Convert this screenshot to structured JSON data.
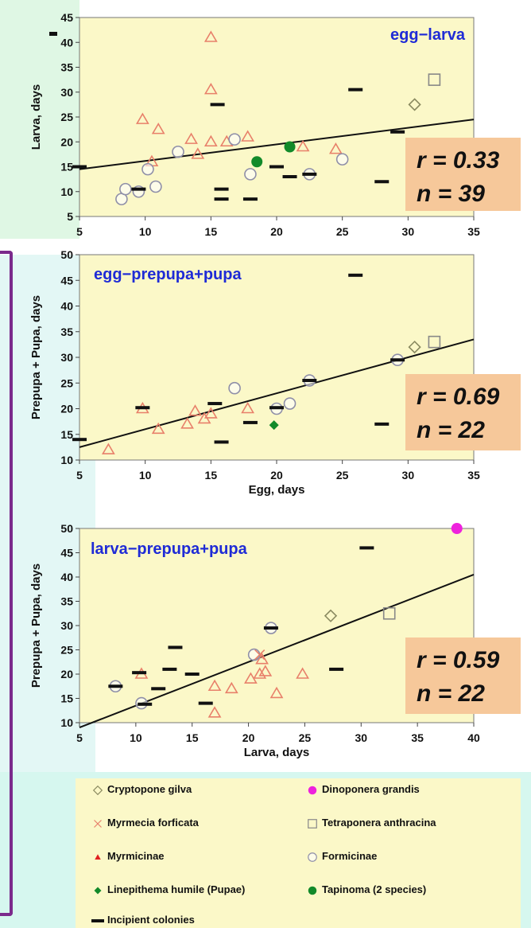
{
  "chart_data": [
    {
      "type": "scatter",
      "title": "egg−larva",
      "xlabel": "",
      "ylabel": "Larva, days",
      "xlim": [
        5,
        35
      ],
      "ylim": [
        5,
        45
      ],
      "xticks": [
        5,
        10,
        15,
        20,
        25,
        30,
        35
      ],
      "yticks": [
        5,
        10,
        15,
        20,
        25,
        30,
        35,
        40,
        45
      ],
      "stat_r": "r = 0.33",
      "stat_n": "n = 39",
      "trendline": [
        [
          5,
          14.5
        ],
        [
          35,
          24.5
        ]
      ],
      "series": [
        {
          "name": "Myrmicinae",
          "marker": "triangle",
          "points": [
            [
              15,
              41
            ],
            [
              15,
              30.5
            ],
            [
              9.8,
              24.5
            ],
            [
              11,
              22.5
            ],
            [
              13.5,
              20.5
            ],
            [
              14,
              17.5
            ],
            [
              15,
              20
            ],
            [
              16.2,
              20
            ],
            [
              17.8,
              21
            ],
            [
              22,
              19
            ],
            [
              24.5,
              18.5
            ],
            [
              10.5,
              16
            ]
          ]
        },
        {
          "name": "Formicinae",
          "marker": "circle",
          "points": [
            [
              8.2,
              8.5
            ],
            [
              8.5,
              10.5
            ],
            [
              10.2,
              14.5
            ],
            [
              10.8,
              11
            ],
            [
              12.5,
              18
            ],
            [
              16.8,
              20.5
            ],
            [
              18,
              13.5
            ],
            [
              25,
              16.5
            ],
            [
              22.5,
              13.5
            ],
            [
              9.5,
              10
            ]
          ]
        },
        {
          "name": "Tapinoma (2 species)",
          "marker": "dot",
          "points": [
            [
              18.5,
              16
            ],
            [
              21,
              19
            ]
          ]
        },
        {
          "name": "Cryptopone gilva",
          "marker": "diamond",
          "points": [
            [
              30.5,
              27.5
            ]
          ]
        },
        {
          "name": "Tetraponera anthracina",
          "marker": "square",
          "points": [
            [
              32,
              32.5
            ]
          ]
        },
        {
          "name": "Incipient colonies",
          "marker": "dash",
          "points": [
            [
              5,
              15
            ],
            [
              9.5,
              10.5
            ],
            [
              15.5,
              27.5
            ],
            [
              15.8,
              10.5
            ],
            [
              15.8,
              8.5
            ],
            [
              18,
              8.5
            ],
            [
              20,
              15
            ],
            [
              21,
              13
            ],
            [
              22.5,
              13.5
            ],
            [
              26,
              30.5
            ],
            [
              28,
              12
            ],
            [
              29.2,
              22
            ]
          ]
        }
      ]
    },
    {
      "type": "scatter",
      "title": "egg−prepupa+pupa",
      "xlabel": "Egg, days",
      "ylabel": "Prepupa + Pupa, days",
      "xlim": [
        5,
        35
      ],
      "ylim": [
        10,
        50
      ],
      "xticks": [
        5,
        10,
        15,
        20,
        25,
        30,
        35
      ],
      "yticks": [
        10,
        15,
        20,
        25,
        30,
        35,
        40,
        45,
        50
      ],
      "stat_r": "r = 0.69",
      "stat_n": "n = 22",
      "trendline": [
        [
          5,
          12.5
        ],
        [
          35,
          33.5
        ]
      ],
      "series": [
        {
          "name": "Myrmicinae",
          "marker": "triangle",
          "points": [
            [
              7.2,
              12
            ],
            [
              9.8,
              20
            ],
            [
              11,
              16
            ],
            [
              13.2,
              17
            ],
            [
              13.8,
              19.5
            ],
            [
              14.5,
              18
            ],
            [
              15,
              19
            ],
            [
              17.8,
              20
            ]
          ]
        },
        {
          "name": "Formicinae",
          "marker": "circle",
          "points": [
            [
              16.8,
              24
            ],
            [
              20,
              20
            ],
            [
              21,
              21
            ],
            [
              22.5,
              25.5
            ],
            [
              29.2,
              29.5
            ]
          ]
        },
        {
          "name": "Linepithema humile (Pupae)",
          "marker": "diamond-filled",
          "points": [
            [
              19.8,
              16.8
            ]
          ]
        },
        {
          "name": "Cryptopone gilva",
          "marker": "diamond",
          "points": [
            [
              30.5,
              32
            ]
          ]
        },
        {
          "name": "Tetraponera anthracina",
          "marker": "square",
          "points": [
            [
              32,
              33
            ]
          ]
        },
        {
          "name": "Incipient colonies",
          "marker": "dash",
          "points": [
            [
              5,
              14
            ],
            [
              9.8,
              20.2
            ],
            [
              15.3,
              21
            ],
            [
              15.8,
              13.5
            ],
            [
              18,
              17.3
            ],
            [
              20,
              20.2
            ],
            [
              22.5,
              25.5
            ],
            [
              26,
              46
            ],
            [
              28,
              17
            ],
            [
              29.2,
              29.5
            ]
          ]
        }
      ]
    },
    {
      "type": "scatter",
      "title": "larva−prepupa+pupa",
      "xlabel": "Larva, days",
      "ylabel": "Prepupa + Pupa, days",
      "xlim": [
        5,
        40
      ],
      "ylim": [
        10,
        50
      ],
      "xticks": [
        5,
        10,
        15,
        20,
        25,
        30,
        35,
        40
      ],
      "yticks": [
        10,
        15,
        20,
        25,
        30,
        35,
        40,
        45,
        50
      ],
      "stat_r": "r = 0.59",
      "stat_n": "n = 22",
      "trendline": [
        [
          5,
          9
        ],
        [
          40,
          40.5
        ]
      ],
      "series": [
        {
          "name": "Myrmicinae",
          "marker": "triangle",
          "points": [
            [
              10.5,
              20
            ],
            [
              17,
              17.5
            ],
            [
              17,
              12
            ],
            [
              18.5,
              17
            ],
            [
              20.2,
              19
            ],
            [
              21,
              20
            ],
            [
              21.5,
              20.5
            ],
            [
              21.2,
              23
            ],
            [
              22.5,
              16
            ],
            [
              24.8,
              20
            ]
          ]
        },
        {
          "name": "Formicinae",
          "marker": "circle",
          "points": [
            [
              8.2,
              17.5
            ],
            [
              10.5,
              14
            ],
            [
              20.5,
              24
            ],
            [
              22,
              29.5
            ]
          ]
        },
        {
          "name": "Dinoponera grandis",
          "marker": "dot-magenta",
          "points": [
            [
              38.5,
              50
            ]
          ]
        },
        {
          "name": "Cryptopone gilva",
          "marker": "diamond",
          "points": [
            [
              27.3,
              32
            ]
          ]
        },
        {
          "name": "Tetraponera anthracina",
          "marker": "square",
          "points": [
            [
              32.5,
              32.5
            ]
          ]
        },
        {
          "name": "Myrmecia forficata",
          "marker": "cross",
          "points": [
            [
              21,
              24
            ]
          ]
        },
        {
          "name": "Incipient colonies",
          "marker": "dash",
          "points": [
            [
              8.2,
              17.5
            ],
            [
              10.3,
              20.3
            ],
            [
              10.8,
              13.8
            ],
            [
              12,
              17
            ],
            [
              13,
              21
            ],
            [
              13.5,
              25.5
            ],
            [
              15,
              20
            ],
            [
              16.2,
              14
            ],
            [
              22,
              29.5
            ],
            [
              27.8,
              21
            ],
            [
              30.5,
              46
            ]
          ]
        }
      ]
    }
  ],
  "legend": {
    "items": [
      {
        "label": "Cryptopone gilva",
        "marker": "diamond"
      },
      {
        "label": "Dinoponera grandis",
        "marker": "dot-magenta"
      },
      {
        "label": "Myrmecia forficata",
        "marker": "cross"
      },
      {
        "label": "Tetraponera anthracina",
        "marker": "square"
      },
      {
        "label": "Myrmicinae",
        "marker": "triangle-filled"
      },
      {
        "label": "Formicinae",
        "marker": "circle"
      },
      {
        "label": "Linepithema humile (Pupae)",
        "marker": "diamond-filled"
      },
      {
        "label": "Tapinoma (2 species)",
        "marker": "dot"
      },
      {
        "label": "Incipient colonies",
        "marker": "dash"
      }
    ]
  },
  "colors": {
    "plot_bg": "#fbf8c8",
    "stat_bg": "#f6c89a",
    "title": "#1f2bd6",
    "triangle": "#e8806a",
    "circle": "#8f8fa8",
    "green": "#128a2a",
    "magenta": "#ee22dd",
    "diamond": "#8a8a60",
    "square": "#888888"
  }
}
